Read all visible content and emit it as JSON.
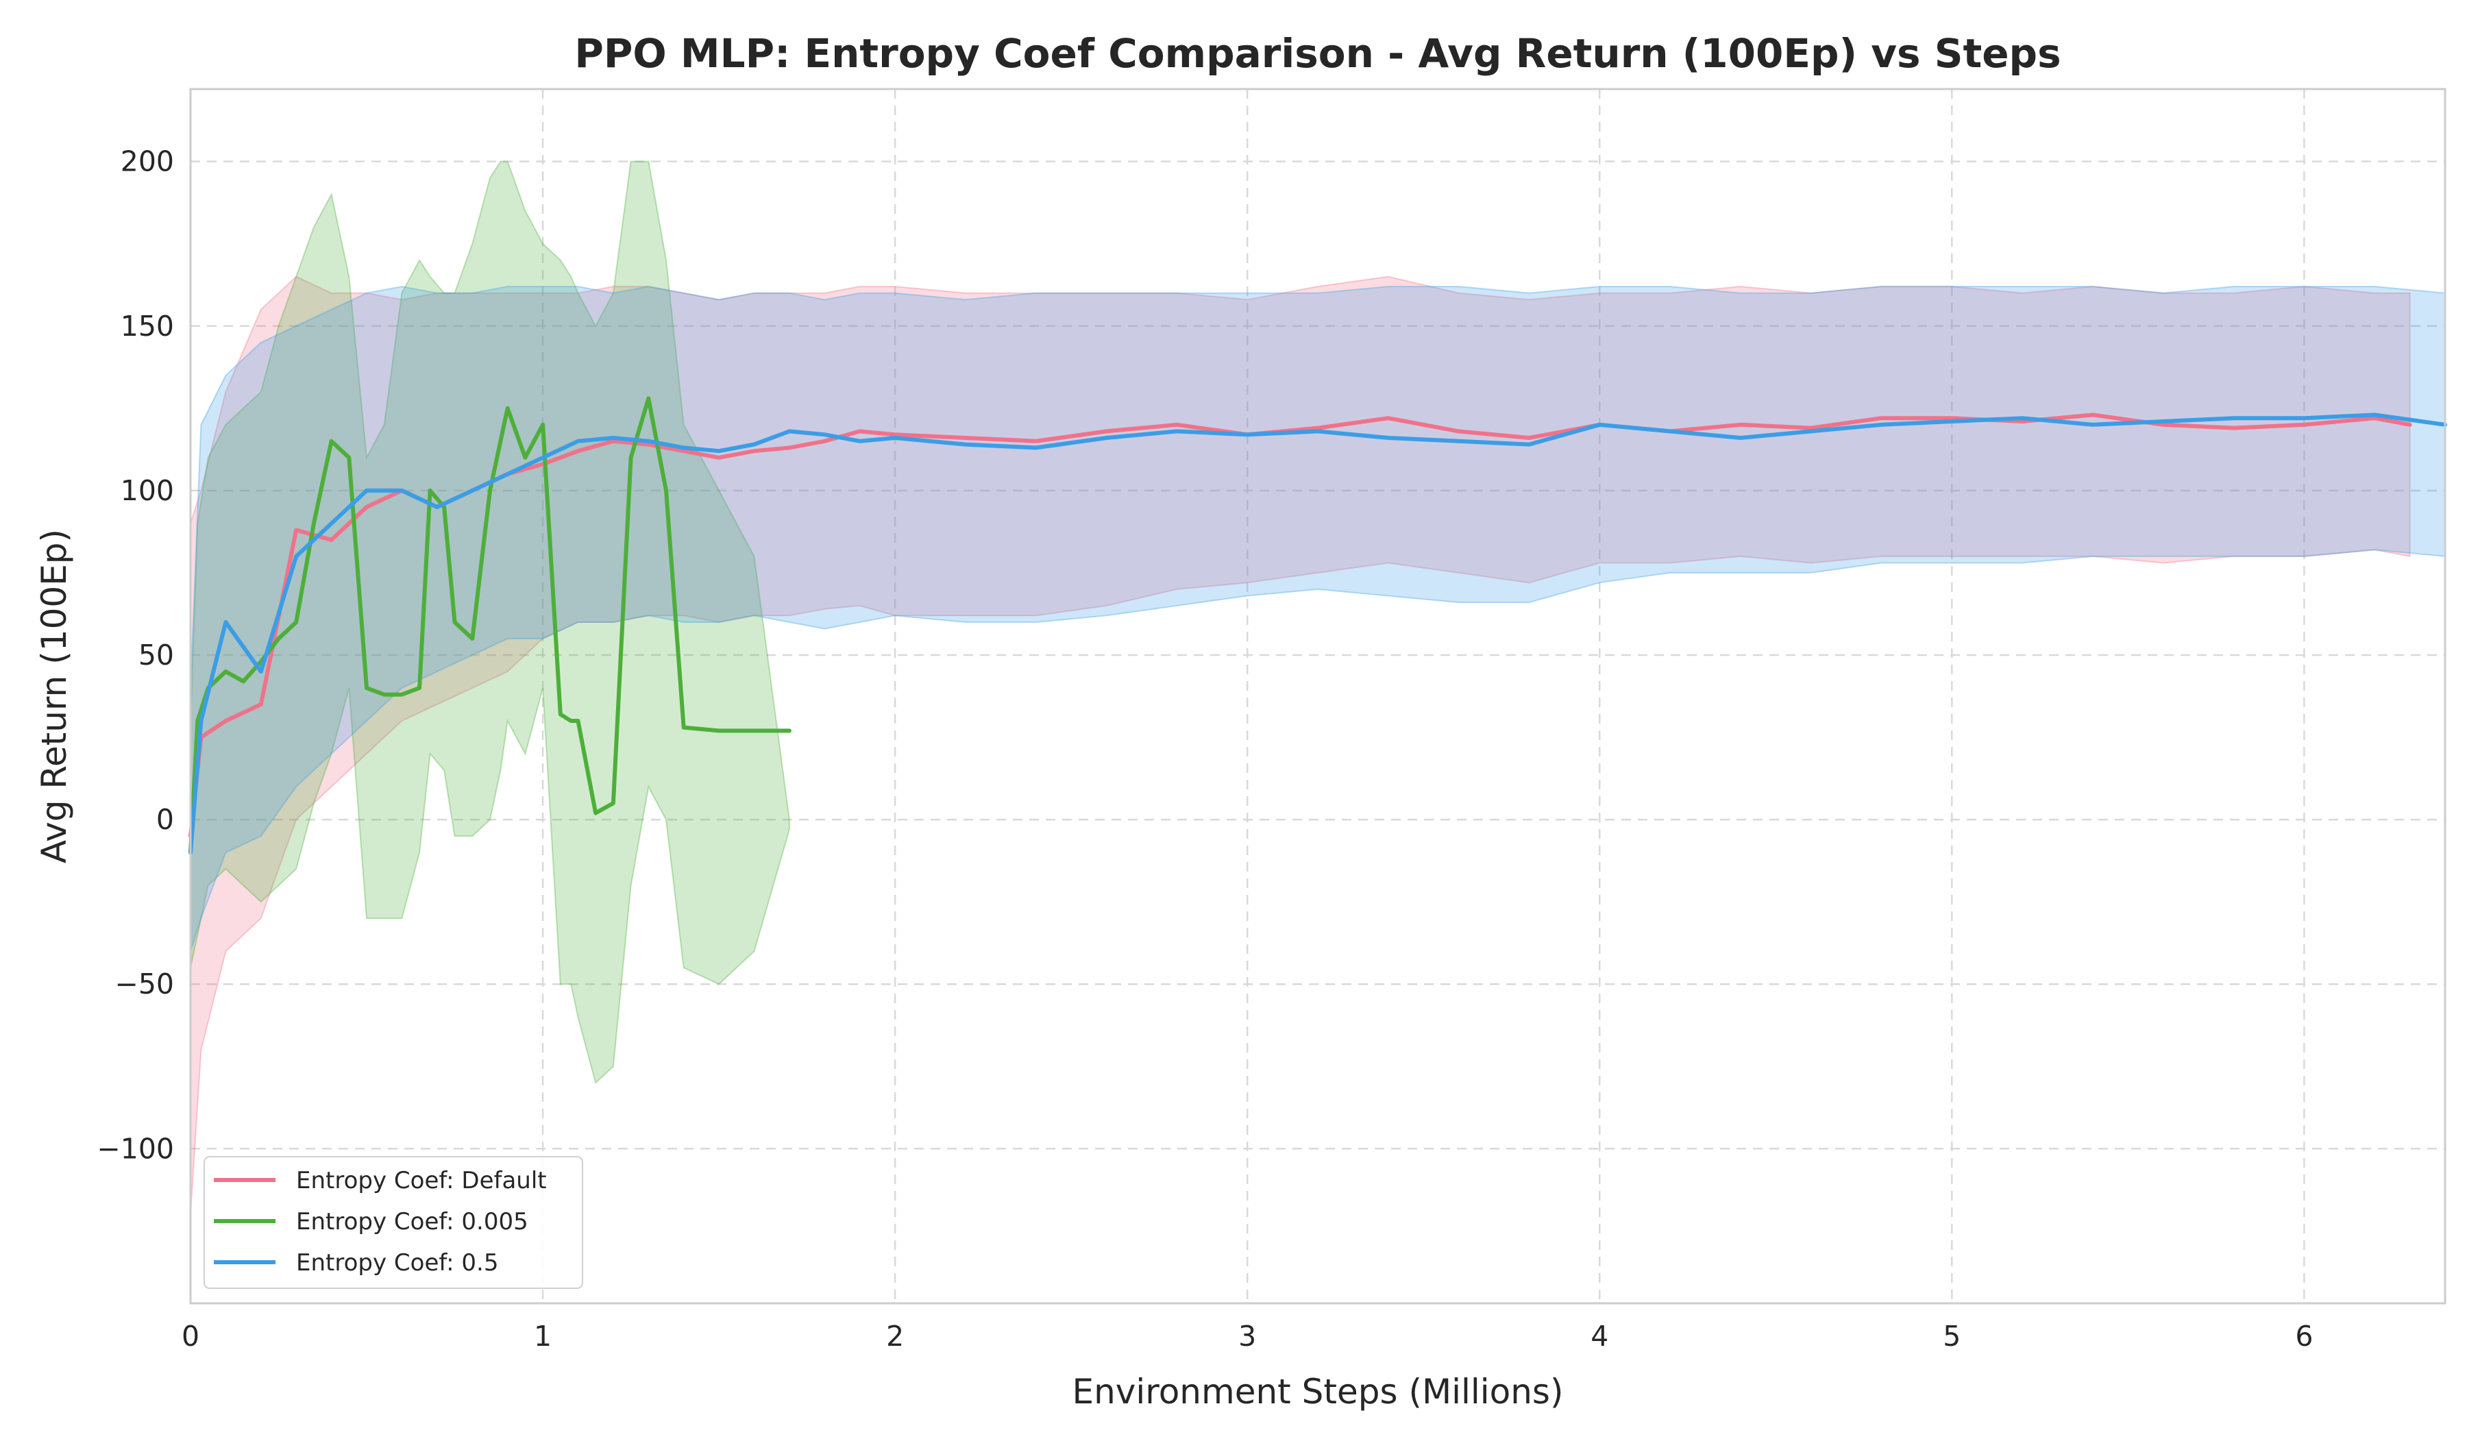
{
  "chart_data": {
    "type": "line",
    "title": "PPO MLP: Entropy Coef Comparison - Avg Return (100Ep) vs Steps",
    "xlabel": "Environment Steps (Millions)",
    "ylabel": "Avg Return (100Ep)",
    "xlim": [
      0,
      6.4
    ],
    "ylim": [
      -147,
      222
    ],
    "xticks": [
      0,
      1,
      2,
      3,
      4,
      5,
      6
    ],
    "yticks": [
      -100,
      -50,
      0,
      50,
      100,
      150,
      200
    ],
    "xtick_labels": [
      "0",
      "1",
      "2",
      "3",
      "4",
      "5",
      "6"
    ],
    "ytick_labels": [
      "−100",
      "−50",
      "0",
      "50",
      "100",
      "150",
      "200"
    ],
    "grid": true,
    "legend_position": "lower-left",
    "series": [
      {
        "name": "Entropy Coef: Default",
        "color": "#f0728a",
        "x": [
          0,
          0.03,
          0.1,
          0.2,
          0.3,
          0.4,
          0.5,
          0.6,
          0.7,
          0.8,
          0.9,
          1.0,
          1.1,
          1.2,
          1.3,
          1.4,
          1.5,
          1.6,
          1.7,
          1.8,
          1.9,
          2.0,
          2.2,
          2.4,
          2.6,
          2.8,
          3.0,
          3.2,
          3.4,
          3.6,
          3.8,
          4.0,
          4.2,
          4.4,
          4.6,
          4.8,
          5.0,
          5.2,
          5.4,
          5.6,
          5.8,
          6.0,
          6.2,
          6.3
        ],
        "y": [
          -5,
          25,
          30,
          35,
          88,
          85,
          95,
          100,
          95,
          100,
          105,
          108,
          112,
          115,
          114,
          112,
          110,
          112,
          113,
          115,
          118,
          117,
          116,
          115,
          118,
          120,
          117,
          119,
          122,
          118,
          116,
          120,
          118,
          120,
          119,
          122,
          122,
          121,
          123,
          120,
          119,
          120,
          122,
          120
        ],
        "y_upper": [
          90,
          100,
          130,
          155,
          165,
          160,
          160,
          158,
          160,
          160,
          160,
          160,
          160,
          162,
          162,
          160,
          158,
          160,
          160,
          160,
          162,
          162,
          160,
          160,
          160,
          160,
          158,
          162,
          165,
          160,
          158,
          160,
          160,
          162,
          160,
          162,
          162,
          160,
          162,
          160,
          160,
          162,
          160,
          160
        ],
        "y_lower": [
          -120,
          -70,
          -40,
          -30,
          0,
          10,
          20,
          30,
          35,
          40,
          45,
          55,
          60,
          60,
          62,
          62,
          60,
          62,
          62,
          64,
          65,
          62,
          62,
          62,
          65,
          70,
          72,
          75,
          78,
          75,
          72,
          78,
          78,
          80,
          78,
          80,
          80,
          80,
          80,
          78,
          80,
          80,
          82,
          80
        ]
      },
      {
        "name": "Entropy Coef: 0.005",
        "color": "#4daf3a",
        "x": [
          0,
          0.02,
          0.05,
          0.1,
          0.15,
          0.2,
          0.25,
          0.3,
          0.35,
          0.4,
          0.45,
          0.5,
          0.55,
          0.6,
          0.65,
          0.68,
          0.72,
          0.75,
          0.8,
          0.85,
          0.88,
          0.9,
          0.95,
          1.0,
          1.05,
          1.08,
          1.1,
          1.15,
          1.2,
          1.25,
          1.3,
          1.35,
          1.4,
          1.5,
          1.6,
          1.7
        ],
        "y": [
          -10,
          30,
          40,
          45,
          42,
          48,
          55,
          60,
          90,
          115,
          110,
          40,
          38,
          38,
          40,
          100,
          95,
          60,
          55,
          100,
          115,
          125,
          110,
          120,
          32,
          30,
          30,
          2,
          5,
          110,
          128,
          100,
          28,
          27,
          27,
          27
        ],
        "y_upper": [
          30,
          90,
          110,
          120,
          125,
          130,
          150,
          165,
          180,
          190,
          165,
          110,
          120,
          160,
          170,
          165,
          160,
          160,
          175,
          195,
          200,
          200,
          185,
          175,
          170,
          165,
          160,
          150,
          160,
          200,
          200,
          170,
          120,
          100,
          80,
          0
        ],
        "y_lower": [
          -45,
          -35,
          -20,
          -15,
          -20,
          -25,
          -20,
          -15,
          5,
          20,
          40,
          -30,
          -30,
          -30,
          -10,
          20,
          15,
          -5,
          -5,
          0,
          15,
          30,
          20,
          40,
          -50,
          -50,
          -60,
          -80,
          -75,
          -20,
          10,
          0,
          -45,
          -50,
          -40,
          -3
        ]
      },
      {
        "name": "Entropy Coef: 0.5",
        "color": "#3b9de6",
        "x": [
          0,
          0.03,
          0.1,
          0.2,
          0.3,
          0.4,
          0.5,
          0.6,
          0.7,
          0.8,
          0.9,
          1.0,
          1.1,
          1.2,
          1.3,
          1.4,
          1.5,
          1.6,
          1.7,
          1.8,
          1.9,
          2.0,
          2.2,
          2.4,
          2.6,
          2.8,
          3.0,
          3.2,
          3.4,
          3.6,
          3.8,
          4.0,
          4.2,
          4.4,
          4.6,
          4.8,
          5.0,
          5.2,
          5.4,
          5.6,
          5.8,
          6.0,
          6.2,
          6.4
        ],
        "y": [
          -10,
          30,
          60,
          45,
          80,
          90,
          100,
          100,
          95,
          100,
          105,
          110,
          115,
          116,
          115,
          113,
          112,
          114,
          118,
          117,
          115,
          116,
          114,
          113,
          116,
          118,
          117,
          118,
          116,
          115,
          114,
          120,
          118,
          116,
          118,
          120,
          121,
          122,
          120,
          121,
          122,
          122,
          123,
          120
        ],
        "y_upper": [
          40,
          120,
          135,
          145,
          150,
          155,
          160,
          162,
          160,
          160,
          162,
          162,
          162,
          160,
          162,
          160,
          158,
          160,
          160,
          158,
          160,
          160,
          158,
          160,
          160,
          160,
          160,
          160,
          162,
          162,
          160,
          162,
          162,
          160,
          160,
          162,
          162,
          162,
          162,
          160,
          162,
          162,
          162,
          160
        ],
        "y_lower": [
          -40,
          -30,
          -10,
          -5,
          10,
          20,
          30,
          40,
          45,
          50,
          55,
          55,
          60,
          60,
          62,
          60,
          60,
          62,
          60,
          58,
          60,
          62,
          60,
          60,
          62,
          65,
          68,
          70,
          68,
          66,
          66,
          72,
          75,
          75,
          75,
          78,
          78,
          78,
          80,
          80,
          80,
          80,
          82,
          80
        ]
      }
    ]
  }
}
